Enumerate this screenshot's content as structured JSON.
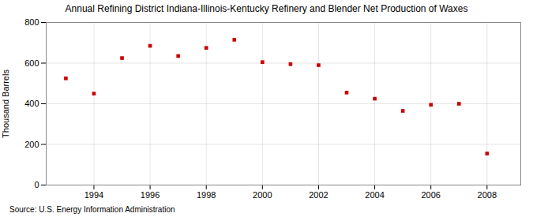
{
  "chart_data": {
    "type": "scatter",
    "title": "Annual Refining District Indiana-Illinois-Kentucky Refinery and Blender Net Production of Waxes",
    "ylabel": "Thousand Barrels",
    "source": "Source: U.S. Energy Information Administration",
    "x": [
      1993,
      1994,
      1995,
      1996,
      1997,
      1998,
      1999,
      2000,
      2001,
      2002,
      2003,
      2004,
      2005,
      2006,
      2007,
      2008
    ],
    "values": [
      525,
      450,
      625,
      685,
      635,
      675,
      715,
      605,
      595,
      590,
      455,
      425,
      365,
      395,
      400,
      155
    ],
    "color": "#cc0000",
    "marker": "square",
    "xlim": [
      1992.3,
      2009.2
    ],
    "xticks": [
      1994,
      1996,
      1998,
      2000,
      2002,
      2004,
      2006,
      2008
    ],
    "ylim": [
      0,
      800
    ],
    "yticks": [
      0,
      200,
      400,
      600,
      800
    ],
    "grid": true
  }
}
